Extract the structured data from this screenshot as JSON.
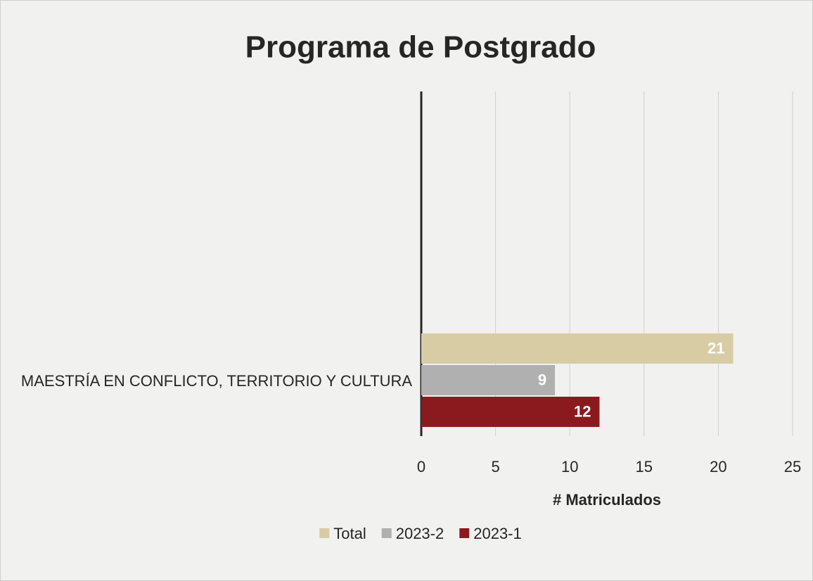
{
  "chart_data": {
    "type": "barh",
    "title": "Programa de Postgrado",
    "categories": [
      "MAESTRÍA EN CONFLICTO, TERRITORIO Y CULTURA"
    ],
    "series": [
      {
        "name": "Total",
        "color": "#d8cca4",
        "values": [
          21
        ]
      },
      {
        "name": "2023-2",
        "color": "#b0b0b0",
        "values": [
          9
        ]
      },
      {
        "name": "2023-1",
        "color": "#8b1a1e",
        "values": [
          12
        ]
      }
    ],
    "xlabel": "# Matriculados",
    "xlim": [
      0,
      25
    ],
    "xticks": [
      0,
      5,
      10,
      15,
      20,
      25
    ],
    "grid": true,
    "legend": "bottom"
  }
}
